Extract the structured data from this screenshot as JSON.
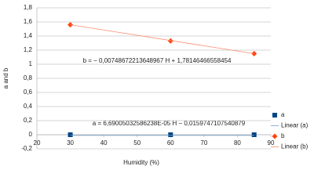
{
  "chart_data": {
    "type": "scatter",
    "x_label": "Humidity (%)",
    "y_label": "a and b",
    "xlim": [
      20,
      90
    ],
    "xticks": [
      20,
      30,
      40,
      50,
      60,
      70,
      80,
      90
    ],
    "ylim": [
      -0.2,
      1.8
    ],
    "yticks": [
      {
        "value": -0.2,
        "label": "-0,2"
      },
      0,
      {
        "value": 0.2,
        "label": "0,2"
      },
      {
        "value": 0.4,
        "label": "0,4"
      },
      {
        "value": 0.6,
        "label": "0,6"
      },
      {
        "value": 0.8,
        "label": "0,8"
      },
      1,
      {
        "value": 1.2,
        "label": "1,2"
      },
      {
        "value": 1.4,
        "label": "1,4"
      },
      {
        "value": 1.6,
        "label": "1,6"
      },
      {
        "value": 1.8,
        "label": "1,8"
      }
    ],
    "grid": true,
    "legend": "right",
    "series": [
      {
        "name": "a",
        "color": "#004586",
        "style": "square",
        "x": [
          30,
          60,
          85
        ],
        "values": [
          0,
          0,
          0
        ]
      },
      {
        "name": "Linear (a)",
        "color": "#729fcf",
        "style": "line",
        "x": [
          30,
          85
        ],
        "values": [
          -0.01,
          -0.01
        ]
      },
      {
        "name": "b",
        "color": "#ff420e",
        "style": "diamond",
        "x": [
          30,
          60,
          85
        ],
        "values": [
          1.56,
          1.33,
          1.15
        ]
      },
      {
        "name": "Linear (b)",
        "color": "#ff8a6e",
        "style": "line",
        "x": [
          30,
          85
        ],
        "values": [
          1.56,
          1.15
        ]
      }
    ],
    "annotations": [
      "b = − 0,00748672213648967 H + 1,78146466558454",
      "a = 6,69005032586238E-05 H − 0,0159747107540879"
    ]
  }
}
